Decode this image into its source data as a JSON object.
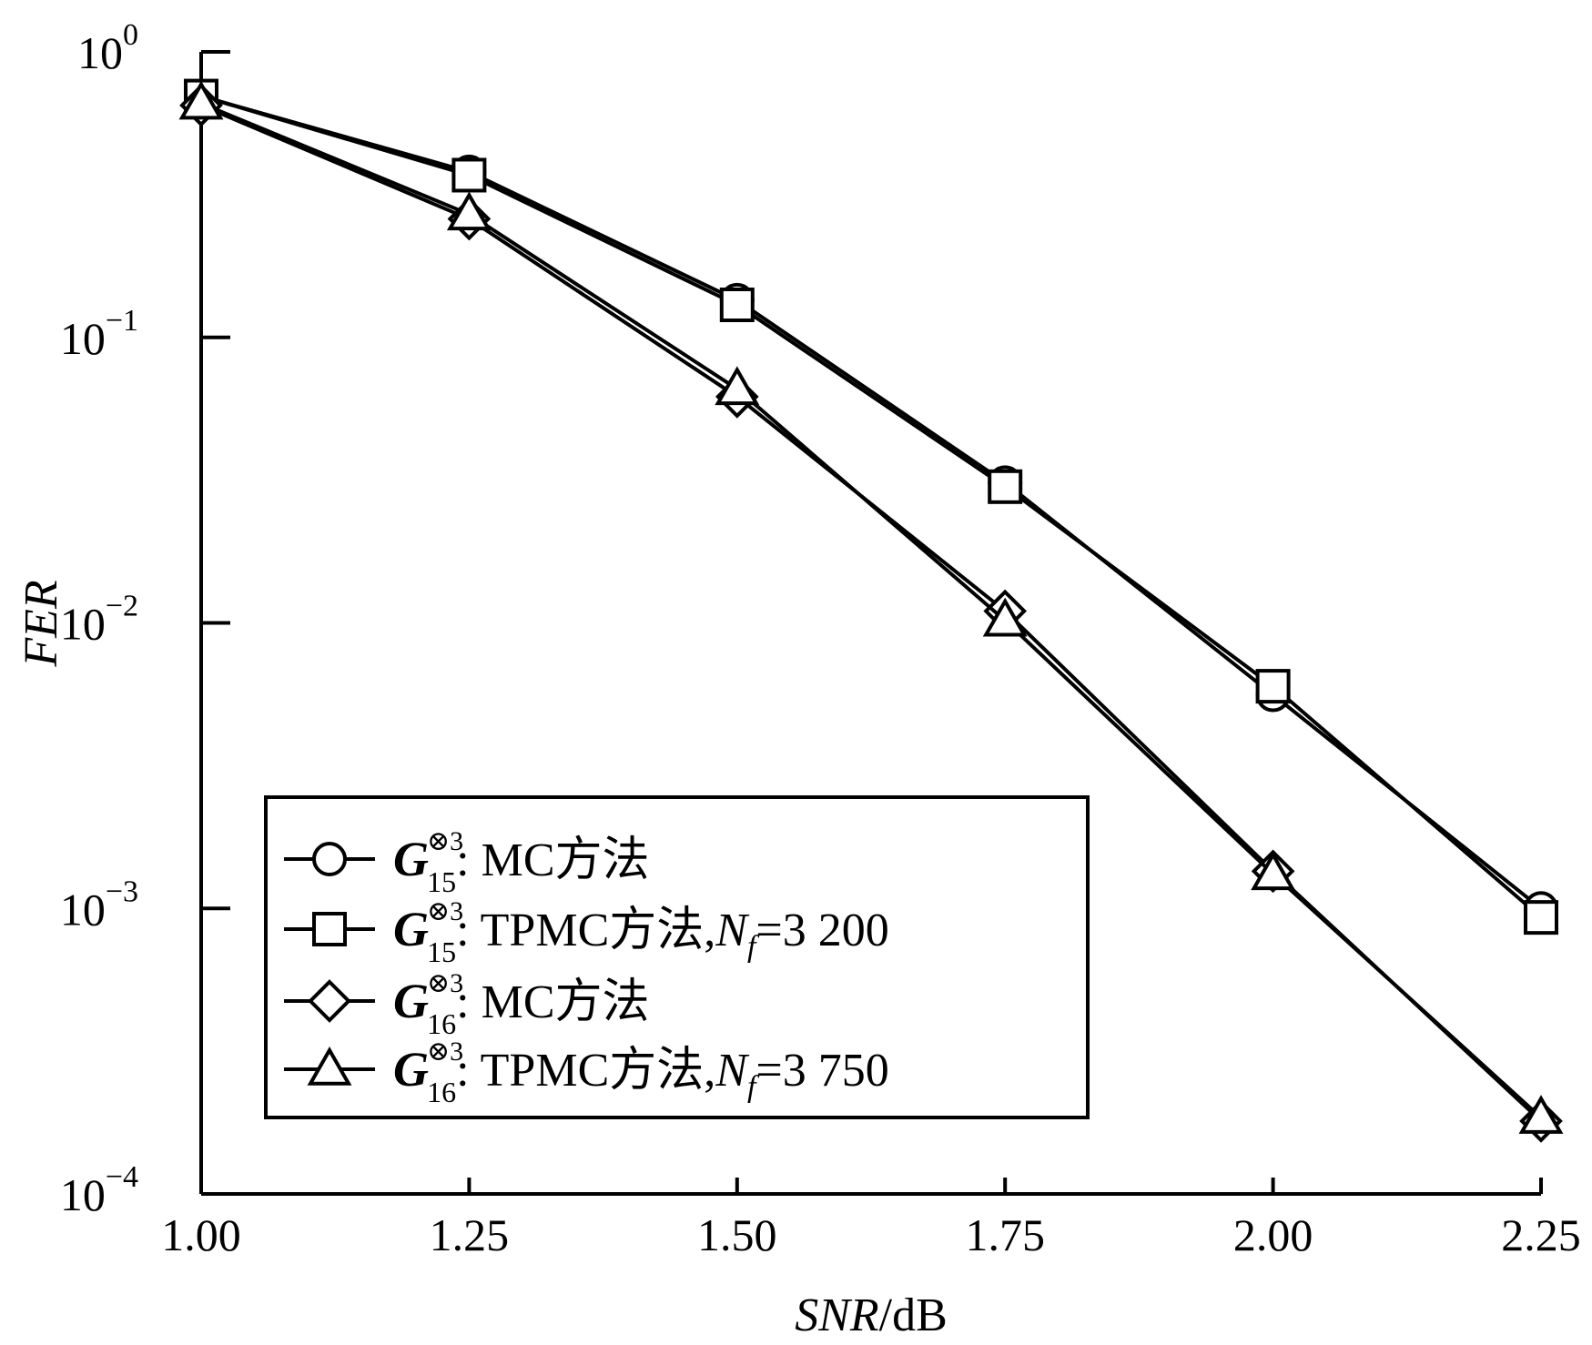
{
  "chart_data": {
    "type": "line",
    "x_scale": "linear",
    "y_scale": "log",
    "xlim": [
      1.0,
      2.25
    ],
    "ylim": [
      0.0001,
      1
    ],
    "x_ticks": [
      "1.00",
      "1.25",
      "1.50",
      "1.75",
      "2.00",
      "2.25"
    ],
    "y_ticks": [
      {
        "base": "10",
        "exp": "0"
      },
      {
        "base": "10",
        "exp": "−1"
      },
      {
        "base": "10",
        "exp": "−2"
      },
      {
        "base": "10",
        "exp": "−3"
      },
      {
        "base": "10",
        "exp": "−4"
      }
    ],
    "xlabel_italic": "SNR",
    "xlabel_unit": "/dB",
    "ylabel": "FER",
    "legend_position": "lower-left",
    "grid": false,
    "series": [
      {
        "marker": "circle",
        "symbol": "G",
        "subscript": "15",
        "superscript": "⊗3",
        "label_text": ": MC方法",
        "x": [
          1.0,
          1.25,
          1.5,
          1.75,
          2.0,
          2.25
        ],
        "y": [
          0.7,
          0.38,
          0.135,
          0.031,
          0.0056,
          0.001
        ]
      },
      {
        "marker": "square",
        "symbol": "G",
        "subscript": "15",
        "superscript": "⊗3",
        "label_text": ": TPMC方法,",
        "label_nf": "N",
        "label_nf_sub": "f",
        "label_nf_value": "=3 200",
        "x": [
          1.0,
          1.25,
          1.5,
          1.75,
          2.0,
          2.25
        ],
        "y": [
          0.7,
          0.37,
          0.13,
          0.03,
          0.006,
          0.00093
        ]
      },
      {
        "marker": "diamond",
        "symbol": "G",
        "subscript": "16",
        "superscript": "⊗3",
        "label_text": ": MC方法",
        "x": [
          1.0,
          1.25,
          1.5,
          1.75,
          2.0,
          2.25
        ],
        "y": [
          0.65,
          0.26,
          0.062,
          0.011,
          0.00135,
          0.00018
        ]
      },
      {
        "marker": "triangle",
        "symbol": "G",
        "subscript": "16",
        "superscript": "⊗3",
        "label_text": ": TPMC方法,",
        "label_nf": "N",
        "label_nf_sub": "f",
        "label_nf_value": "=3 750",
        "x": [
          1.0,
          1.25,
          1.5,
          1.75,
          2.0,
          2.25
        ],
        "y": [
          0.66,
          0.27,
          0.066,
          0.0102,
          0.00132,
          0.000185
        ]
      }
    ]
  }
}
